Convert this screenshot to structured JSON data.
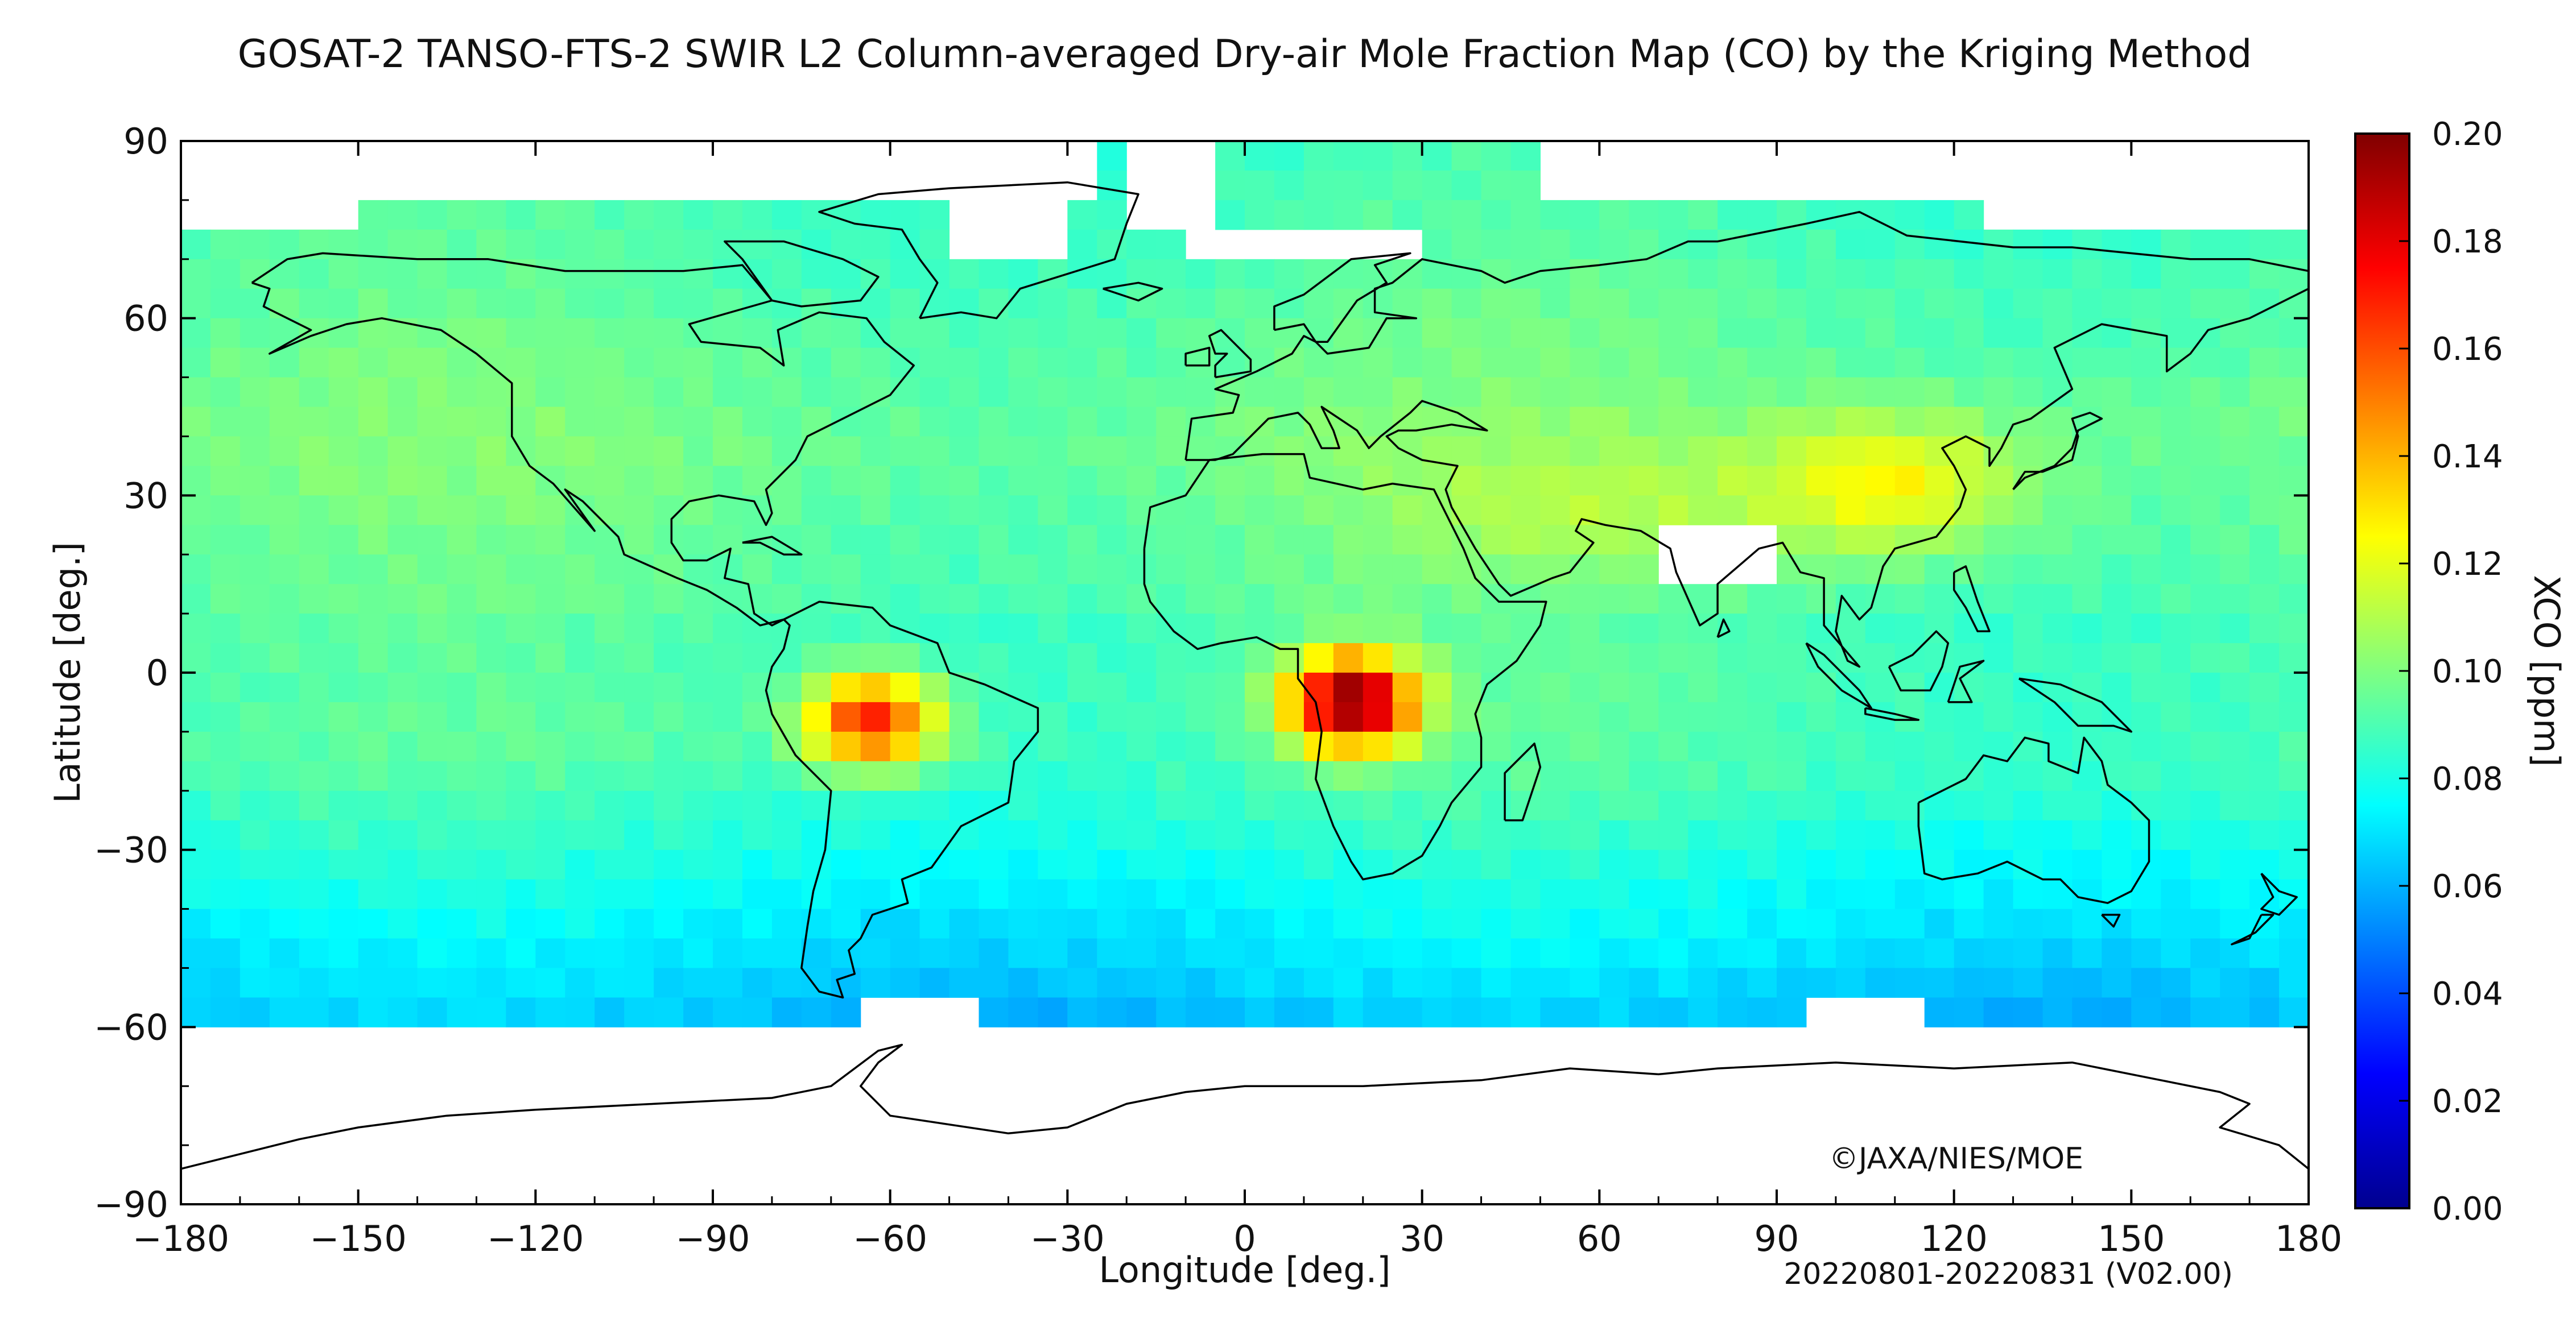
{
  "title": "GOSAT-2 TANSO-FTS-2 SWIR L2 Column-averaged Dry-air Mole Fraction Map (CO) by the Kriging Method",
  "xlabel": "Longitude [deg.]",
  "ylabel": "Latitude [deg.]",
  "colorbar": {
    "label": "XCO [ppm]",
    "min": 0.0,
    "max": 0.2,
    "ticks": [
      "0.00",
      "0.02",
      "0.04",
      "0.06",
      "0.08",
      "0.10",
      "0.12",
      "0.14",
      "0.16",
      "0.18",
      "0.20"
    ],
    "colors": [
      "#00008f",
      "#0000ff",
      "#0080ff",
      "#00ffff",
      "#80ff80",
      "#ffff00",
      "#ff8000",
      "#ff0000",
      "#800000"
    ]
  },
  "copyright": "©JAXA/NIES/MOE",
  "period": "20220801-20220831 (V02.00)",
  "chart_data": {
    "type": "heatmap",
    "xlim": [
      -180,
      180
    ],
    "ylim": [
      -90,
      90
    ],
    "xticks": [
      "−180",
      "−150",
      "−120",
      "−90",
      "−60",
      "−30",
      "0",
      "30",
      "60",
      "90",
      "120",
      "150",
      "180"
    ],
    "yticks": [
      "90",
      "60",
      "30",
      "0",
      "−30",
      "−60",
      "−90"
    ],
    "grid_resolution_deg": 5,
    "no_data": [
      "north of ~75N except Greenland/Arctic strip",
      "south of ~60S (Antarctica)",
      "Himalaya/India patch ~70-90E 15-25N",
      "Greenland interior"
    ],
    "hotspots": [
      {
        "name": "Amazon fires",
        "lon": -63,
        "lat": -8,
        "value": 0.17
      },
      {
        "name": "Central Africa fires",
        "lon": 18,
        "lat": -5,
        "value": 0.2
      },
      {
        "name": "East Asia",
        "lon": 110,
        "lat": 32,
        "value": 0.12
      }
    ],
    "background_values": {
      "tropics": 0.09,
      "mid_north": 0.1,
      "south_ocean": 0.065
    }
  }
}
